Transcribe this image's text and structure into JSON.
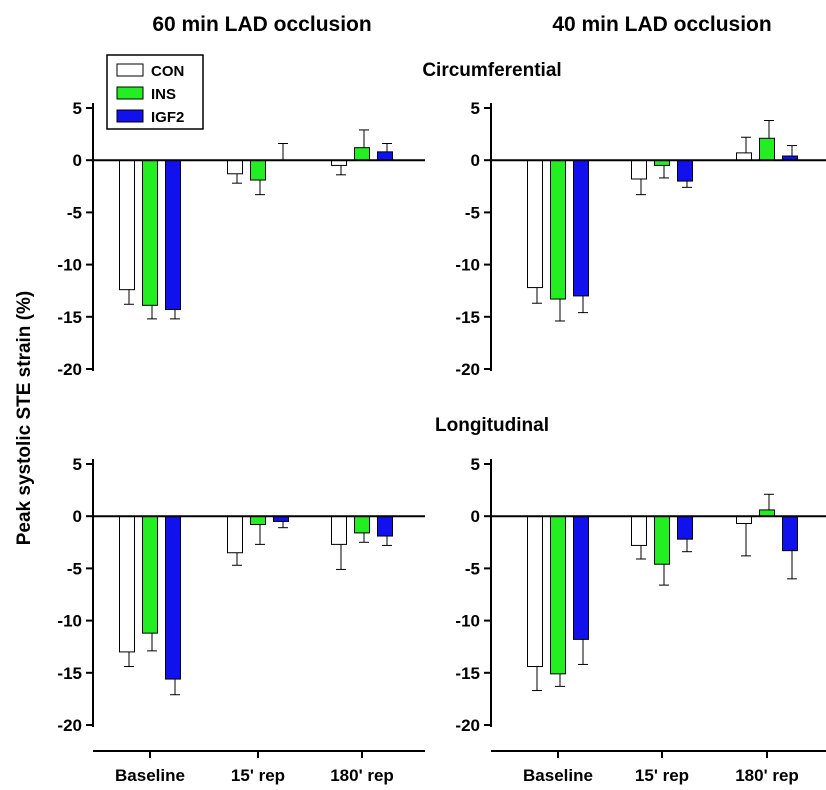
{
  "figure": {
    "ylabel": "Peak systolic STE strain (%)",
    "column_titles": [
      "60 min LAD occlusion",
      "40 min LAD occlusion"
    ],
    "row_titles": [
      "Circumferential",
      "Longitudinal"
    ],
    "legend": [
      {
        "name": "CON",
        "color": "#ffffff"
      },
      {
        "name": "INS",
        "color": "#22ee22"
      },
      {
        "name": "IGF2",
        "color": "#1111ee"
      }
    ]
  },
  "chart_data": [
    {
      "type": "bar",
      "title": "60 min LAD occlusion",
      "subtitle": "Circumferential",
      "xlabel": "",
      "ylabel": "Peak systolic STE strain (%)",
      "categories": [
        "Baseline",
        "15' rep",
        "180' rep"
      ],
      "ylim": [
        -20,
        5
      ],
      "yticks": [
        5,
        0,
        -5,
        -10,
        -15,
        -20
      ],
      "grid": false,
      "legend_position": "top-left",
      "series": [
        {
          "name": "CON",
          "color": "#ffffff",
          "values": [
            -12.4,
            -1.3,
            -0.5
          ],
          "errors": [
            1.4,
            0.9,
            0.9
          ]
        },
        {
          "name": "INS",
          "color": "#22ee22",
          "values": [
            -13.9,
            -1.9,
            1.2
          ],
          "errors": [
            1.3,
            1.4,
            1.7
          ]
        },
        {
          "name": "IGF2",
          "color": "#1111ee",
          "values": [
            -14.3,
            0,
            0.8
          ],
          "errors": [
            0.9,
            1.6,
            0.8
          ]
        }
      ]
    },
    {
      "type": "bar",
      "title": "40 min LAD occlusion",
      "subtitle": "Circumferential",
      "xlabel": "",
      "ylabel": "Peak systolic STE strain (%)",
      "categories": [
        "Baseline",
        "15' rep",
        "180' rep"
      ],
      "ylim": [
        -20,
        5
      ],
      "yticks": [
        5,
        0,
        -5,
        -10,
        -15,
        -20
      ],
      "grid": false,
      "series": [
        {
          "name": "CON",
          "color": "#ffffff",
          "values": [
            -12.2,
            -1.8,
            0.7
          ],
          "errors": [
            1.5,
            1.5,
            1.5
          ]
        },
        {
          "name": "INS",
          "color": "#22ee22",
          "values": [
            -13.3,
            -0.5,
            2.1
          ],
          "errors": [
            2.1,
            1.2,
            1.7
          ]
        },
        {
          "name": "IGF2",
          "color": "#1111ee",
          "values": [
            -13.0,
            -2.0,
            0.4
          ],
          "errors": [
            1.6,
            0.6,
            1.0
          ]
        }
      ]
    },
    {
      "type": "bar",
      "title": "60 min LAD occlusion",
      "subtitle": "Longitudinal",
      "xlabel": "",
      "ylabel": "Peak systolic STE strain (%)",
      "categories": [
        "Baseline",
        "15' rep",
        "180' rep"
      ],
      "ylim": [
        -20,
        5
      ],
      "yticks": [
        5,
        0,
        -5,
        -10,
        -15,
        -20
      ],
      "grid": false,
      "series": [
        {
          "name": "CON",
          "color": "#ffffff",
          "values": [
            -13.0,
            -3.5,
            -2.7
          ],
          "errors": [
            1.4,
            1.2,
            2.4
          ]
        },
        {
          "name": "INS",
          "color": "#22ee22",
          "values": [
            -11.2,
            -0.8,
            -1.6
          ],
          "errors": [
            1.7,
            1.9,
            0.9
          ]
        },
        {
          "name": "IGF2",
          "color": "#1111ee",
          "values": [
            -15.6,
            -0.5,
            -1.9
          ],
          "errors": [
            1.5,
            0.6,
            0.9
          ]
        }
      ]
    },
    {
      "type": "bar",
      "title": "40 min LAD occlusion",
      "subtitle": "Longitudinal",
      "xlabel": "",
      "ylabel": "Peak systolic STE strain (%)",
      "categories": [
        "Baseline",
        "15' rep",
        "180' rep"
      ],
      "ylim": [
        -20,
        5
      ],
      "yticks": [
        5,
        0,
        -5,
        -10,
        -15,
        -20
      ],
      "grid": false,
      "series": [
        {
          "name": "CON",
          "color": "#ffffff",
          "values": [
            -14.4,
            -2.8,
            -0.7
          ],
          "errors": [
            2.3,
            1.3,
            3.1
          ]
        },
        {
          "name": "INS",
          "color": "#22ee22",
          "values": [
            -15.1,
            -4.6,
            0.6
          ],
          "errors": [
            1.2,
            2.0,
            1.5
          ]
        },
        {
          "name": "IGF2",
          "color": "#1111ee",
          "values": [
            -11.8,
            -2.2,
            -3.3
          ],
          "errors": [
            2.4,
            1.2,
            2.7
          ]
        }
      ]
    }
  ]
}
